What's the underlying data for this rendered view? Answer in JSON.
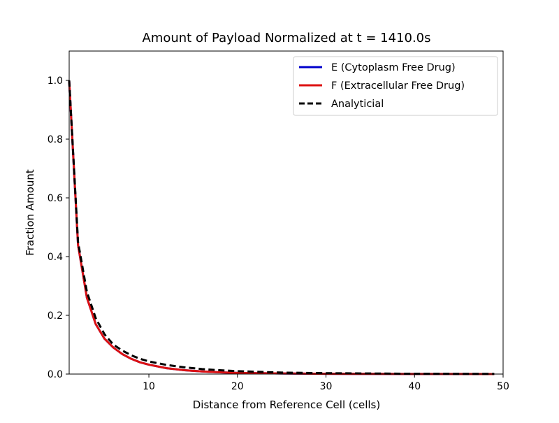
{
  "chart_data": {
    "type": "line",
    "title": "Amount of Payload Normalized at t = 1410.0s",
    "xlabel": "Distance from Reference Cell (cells)",
    "ylabel": "Fraction Amount",
    "xlim": [
      1,
      50
    ],
    "ylim": [
      0,
      1.1
    ],
    "xticks": [
      10,
      20,
      30,
      40,
      50
    ],
    "xtick_labels": [
      "10",
      "20",
      "30",
      "40",
      "50"
    ],
    "yticks": [
      0,
      0.2,
      0.4,
      0.6,
      0.8,
      1.0
    ],
    "ytick_labels": [
      "0.0",
      "0.2",
      "0.4",
      "0.6",
      "0.8",
      "1.0"
    ],
    "grid": false,
    "legend_position": "top-right",
    "series": [
      {
        "name": "E (Cytoplasm Free Drug)",
        "color": "#0000cc",
        "style": "solid",
        "x": [
          1,
          2,
          3,
          4,
          5,
          6,
          7,
          8,
          9,
          10,
          12,
          14,
          16,
          18,
          20,
          25,
          30,
          35,
          40,
          45,
          49
        ],
        "y": [
          1.0,
          0.44,
          0.26,
          0.17,
          0.12,
          0.09,
          0.068,
          0.052,
          0.04,
          0.032,
          0.02,
          0.013,
          0.009,
          0.006,
          0.004,
          0.002,
          0.001,
          0.0005,
          0.0003,
          0.0002,
          0.0001
        ]
      },
      {
        "name": "F (Extracellular Free Drug)",
        "color": "#dd1111",
        "style": "solid",
        "x": [
          1,
          2,
          3,
          4,
          5,
          6,
          7,
          8,
          9,
          10,
          12,
          14,
          16,
          18,
          20,
          25,
          30,
          35,
          40,
          45,
          49
        ],
        "y": [
          1.0,
          0.44,
          0.26,
          0.17,
          0.12,
          0.09,
          0.068,
          0.052,
          0.04,
          0.032,
          0.02,
          0.013,
          0.009,
          0.006,
          0.004,
          0.002,
          0.001,
          0.0005,
          0.0003,
          0.0002,
          0.0001
        ]
      },
      {
        "name": "Analyticial",
        "color": "#000000",
        "style": "dashed",
        "x": [
          1,
          2,
          3,
          4,
          5,
          6,
          7,
          8,
          9,
          10,
          12,
          14,
          16,
          18,
          20,
          25,
          30,
          35,
          40,
          45,
          49
        ],
        "y": [
          1.0,
          0.45,
          0.28,
          0.19,
          0.135,
          0.1,
          0.08,
          0.064,
          0.052,
          0.043,
          0.031,
          0.023,
          0.017,
          0.013,
          0.01,
          0.005,
          0.003,
          0.002,
          0.001,
          0.0007,
          0.0005
        ]
      }
    ]
  }
}
